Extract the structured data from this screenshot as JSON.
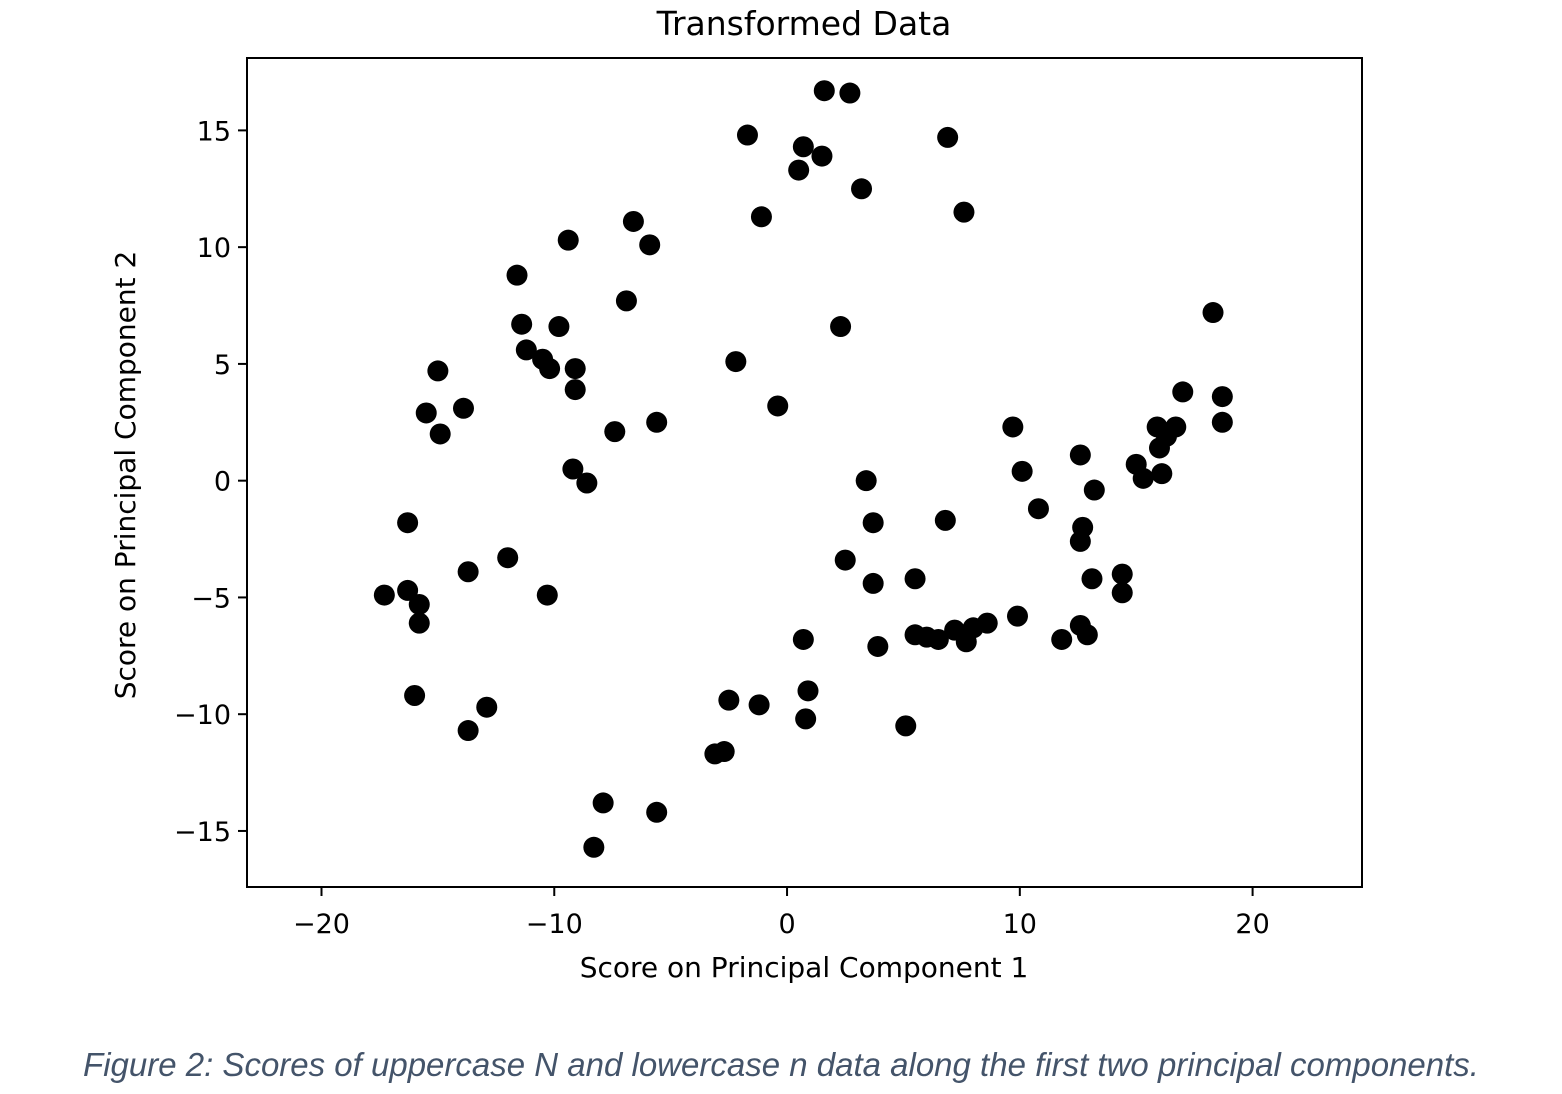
{
  "chart_data": {
    "type": "scatter",
    "title": "Transformed Data",
    "xlabel": "Score on Principal Component 1",
    "ylabel": "Score on Principal Component 2",
    "xlim": [
      -23.2,
      24.7
    ],
    "ylim": [
      -17.4,
      18.1
    ],
    "xticks": [
      -20,
      -10,
      0,
      10,
      20
    ],
    "xtick_labels": [
      "−20",
      "−10",
      "0",
      "10",
      "20"
    ],
    "yticks": [
      15,
      10,
      5,
      0,
      -5,
      -10,
      -15
    ],
    "ytick_labels": [
      "15",
      "10",
      "5",
      "0",
      "−5",
      "−10",
      "−15"
    ],
    "grid": false,
    "marker_color": "#000000",
    "points": [
      [
        1.6,
        16.7
      ],
      [
        2.7,
        16.6
      ],
      [
        -1.7,
        14.8
      ],
      [
        0.7,
        14.3
      ],
      [
        1.5,
        13.9
      ],
      [
        0.5,
        13.3
      ],
      [
        6.9,
        14.7
      ],
      [
        3.2,
        12.5
      ],
      [
        -1.1,
        11.3
      ],
      [
        7.6,
        11.5
      ],
      [
        -6.6,
        11.1
      ],
      [
        -5.9,
        10.1
      ],
      [
        -9.4,
        10.3
      ],
      [
        -11.6,
        8.8
      ],
      [
        -6.9,
        7.7
      ],
      [
        -11.4,
        6.7
      ],
      [
        -9.8,
        6.6
      ],
      [
        -11.2,
        5.6
      ],
      [
        -10.5,
        5.2
      ],
      [
        -10.2,
        4.8
      ],
      [
        -9.1,
        4.8
      ],
      [
        -9.1,
        3.9
      ],
      [
        -2.2,
        5.1
      ],
      [
        2.3,
        6.6
      ],
      [
        18.3,
        7.2
      ],
      [
        -15.0,
        4.7
      ],
      [
        -15.5,
        2.9
      ],
      [
        -13.9,
        3.1
      ],
      [
        -14.9,
        2.0
      ],
      [
        -7.4,
        2.1
      ],
      [
        -5.6,
        2.5
      ],
      [
        -0.4,
        3.2
      ],
      [
        -9.2,
        0.5
      ],
      [
        -8.6,
        -0.1
      ],
      [
        17.0,
        3.8
      ],
      [
        18.7,
        3.6
      ],
      [
        18.7,
        2.5
      ],
      [
        15.9,
        2.3
      ],
      [
        16.7,
        2.3
      ],
      [
        16.3,
        1.9
      ],
      [
        16.0,
        1.4
      ],
      [
        9.7,
        2.3
      ],
      [
        10.1,
        0.4
      ],
      [
        12.6,
        1.1
      ],
      [
        15.0,
        0.7
      ],
      [
        15.3,
        0.1
      ],
      [
        16.1,
        0.3
      ],
      [
        13.2,
        -0.4
      ],
      [
        10.8,
        -1.2
      ],
      [
        3.4,
        0.0
      ],
      [
        3.7,
        -1.8
      ],
      [
        6.8,
        -1.7
      ],
      [
        12.7,
        -2.0
      ],
      [
        12.6,
        -2.6
      ],
      [
        -16.3,
        -1.8
      ],
      [
        -12.0,
        -3.3
      ],
      [
        -13.7,
        -3.9
      ],
      [
        2.5,
        -3.4
      ],
      [
        3.7,
        -4.4
      ],
      [
        5.5,
        -4.2
      ],
      [
        13.1,
        -4.2
      ],
      [
        14.4,
        -4.0
      ],
      [
        14.4,
        -4.8
      ],
      [
        -17.3,
        -4.9
      ],
      [
        -16.3,
        -4.7
      ],
      [
        -15.8,
        -5.3
      ],
      [
        -15.8,
        -6.1
      ],
      [
        -10.3,
        -4.9
      ],
      [
        5.5,
        -6.6
      ],
      [
        6.0,
        -6.7
      ],
      [
        6.5,
        -6.8
      ],
      [
        7.2,
        -6.4
      ],
      [
        7.7,
        -6.9
      ],
      [
        8.0,
        -6.3
      ],
      [
        8.6,
        -6.1
      ],
      [
        9.9,
        -5.8
      ],
      [
        11.8,
        -6.8
      ],
      [
        12.6,
        -6.2
      ],
      [
        12.9,
        -6.6
      ],
      [
        3.9,
        -7.1
      ],
      [
        0.7,
        -6.8
      ],
      [
        -16.0,
        -9.2
      ],
      [
        -12.9,
        -9.7
      ],
      [
        -13.7,
        -10.7
      ],
      [
        -2.5,
        -9.4
      ],
      [
        -1.2,
        -9.6
      ],
      [
        0.9,
        -9.0
      ],
      [
        0.8,
        -10.2
      ],
      [
        5.1,
        -10.5
      ],
      [
        -3.1,
        -11.7
      ],
      [
        -2.7,
        -11.6
      ],
      [
        -7.9,
        -13.8
      ],
      [
        -5.6,
        -14.2
      ],
      [
        -8.3,
        -15.7
      ]
    ]
  },
  "caption": "Figure 2: Scores of uppercase N and lowercase n data along the first two principal components."
}
